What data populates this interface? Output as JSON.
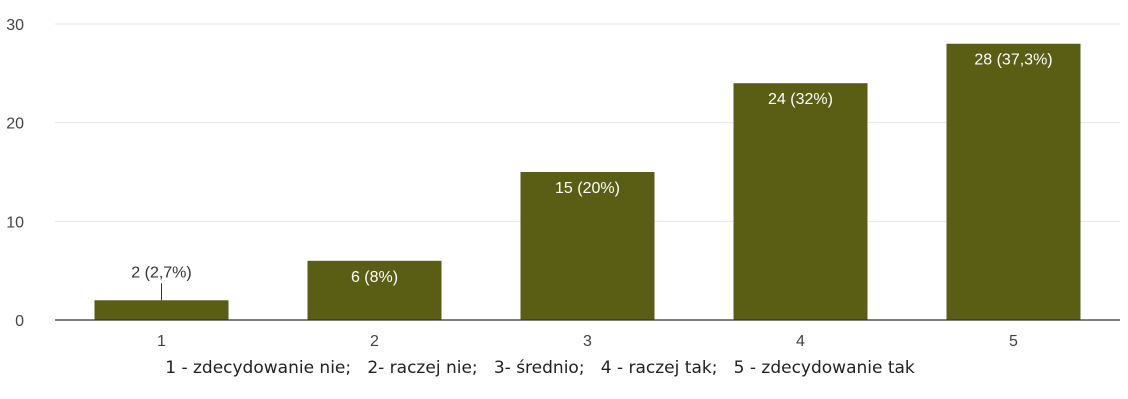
{
  "chart_data": {
    "type": "bar",
    "categories": [
      "1",
      "2",
      "3",
      "4",
      "5"
    ],
    "values": [
      2,
      6,
      15,
      24,
      28
    ],
    "data_labels": [
      "2 (2,7%)",
      "6 (8%)",
      "15 (20%)",
      "24 (32%)",
      "28 (37,3%)"
    ],
    "y_ticks": [
      0,
      10,
      20,
      30
    ],
    "ylim": [
      0,
      30
    ],
    "grid": true,
    "legend": "none",
    "title": "",
    "xlabel": "",
    "ylabel": "",
    "bar_color": "#5a5e14",
    "inside_label_color": "#ffffff",
    "outside_label_color": "#333333",
    "grid_color": "#e6e6e6",
    "axis_color": "#333333"
  },
  "caption": "1 - zdecydowanie nie;   2- raczej nie;   3- średnio;   4 - raczej tak;   5 - zdecydowanie tak"
}
